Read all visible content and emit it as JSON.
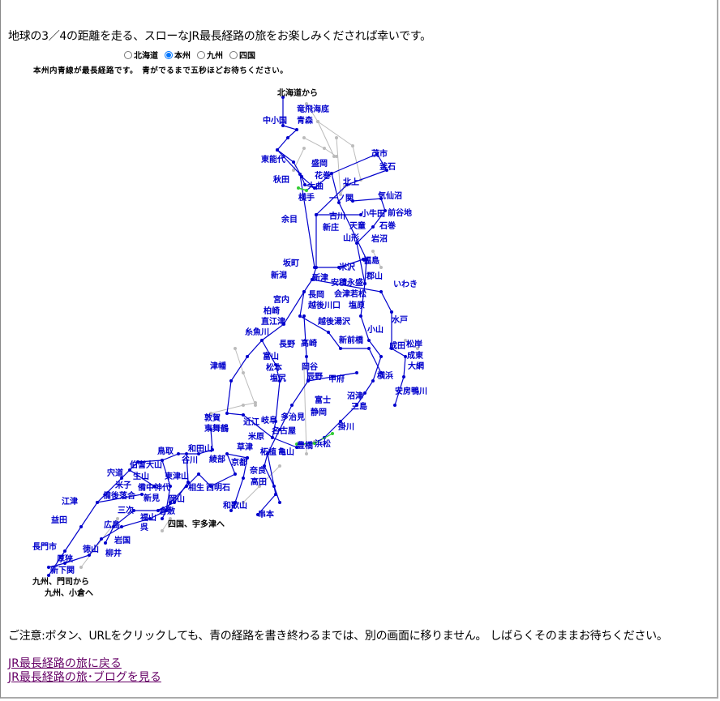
{
  "intro_text": "地球の3／4の距離を走る、スローなJR最長経路の旅をお楽しみくだされば幸いです。",
  "region_selector": {
    "options": [
      "北海道",
      "本州",
      "九州",
      "四国"
    ],
    "selected": "本州"
  },
  "instruction": "本州内青線が最長経路です。　青がでるまで五秒ほどお待ちください。",
  "map": {
    "route_color": "#0000cc",
    "other_line_color": "#bbbbbb",
    "transfer_color": "#33cc33",
    "endpoints": [
      "北海道から",
      "四国、宇多津へ",
      "九州、門司から",
      "九州、小倉へ"
    ],
    "stations": [
      "竜飛海底",
      "中小国",
      "青森",
      "東能代",
      "盛岡",
      "茂市",
      "釜石",
      "秋田",
      "花巻",
      "大曲",
      "北上",
      "横手",
      "一ノ関",
      "気仙沼",
      "余目",
      "古川",
      "新庄",
      "小牛田",
      "前谷地",
      "石巻",
      "天童",
      "山形",
      "岩沼",
      "坂町",
      "米沢",
      "福島",
      "新潟",
      "新津",
      "郡山",
      "いわき",
      "安積永盛",
      "会津若松",
      "長岡",
      "宮内",
      "柏崎",
      "越後川口",
      "塩原",
      "直江津",
      "越後湯沢",
      "水戸",
      "小山",
      "糸魚川",
      "新前橋",
      "高崎",
      "長野",
      "成田",
      "松岸",
      "成東",
      "大網",
      "富山",
      "松本",
      "塩尻",
      "岡谷",
      "辰野",
      "津幡",
      "甲府",
      "横浜",
      "安房鴨川",
      "富士",
      "沼津",
      "三島",
      "静岡",
      "掛川",
      "多治見",
      "近江",
      "岐阜",
      "敦賀",
      "名古屋",
      "東舞鶴",
      "米原",
      "豊橋",
      "浜松",
      "草津",
      "柘植",
      "亀山",
      "鳥取",
      "和田山",
      "綾部",
      "谷川",
      "京都",
      "伯耆大山",
      "宍道",
      "生山",
      "米子",
      "奈良",
      "東津山",
      "高田",
      "備後落合",
      "備中神代",
      "相生",
      "西明石",
      "新見",
      "岡山",
      "江津",
      "和歌山",
      "三次",
      "倉敷",
      "福山",
      "串本",
      "益田",
      "広島",
      "呉",
      "岩国",
      "長門市",
      "徳山",
      "柳井",
      "厚狭",
      "新下関"
    ]
  },
  "caution_text": "ご注意:ボタン、URLをクリックしても、青の経路を書き終わるまでは、別の画面に移りません。 しばらくそのままお待ちください。",
  "links": [
    "JR最長経路の旅に戻る",
    "JR最長経路の旅･ブログを見る"
  ]
}
